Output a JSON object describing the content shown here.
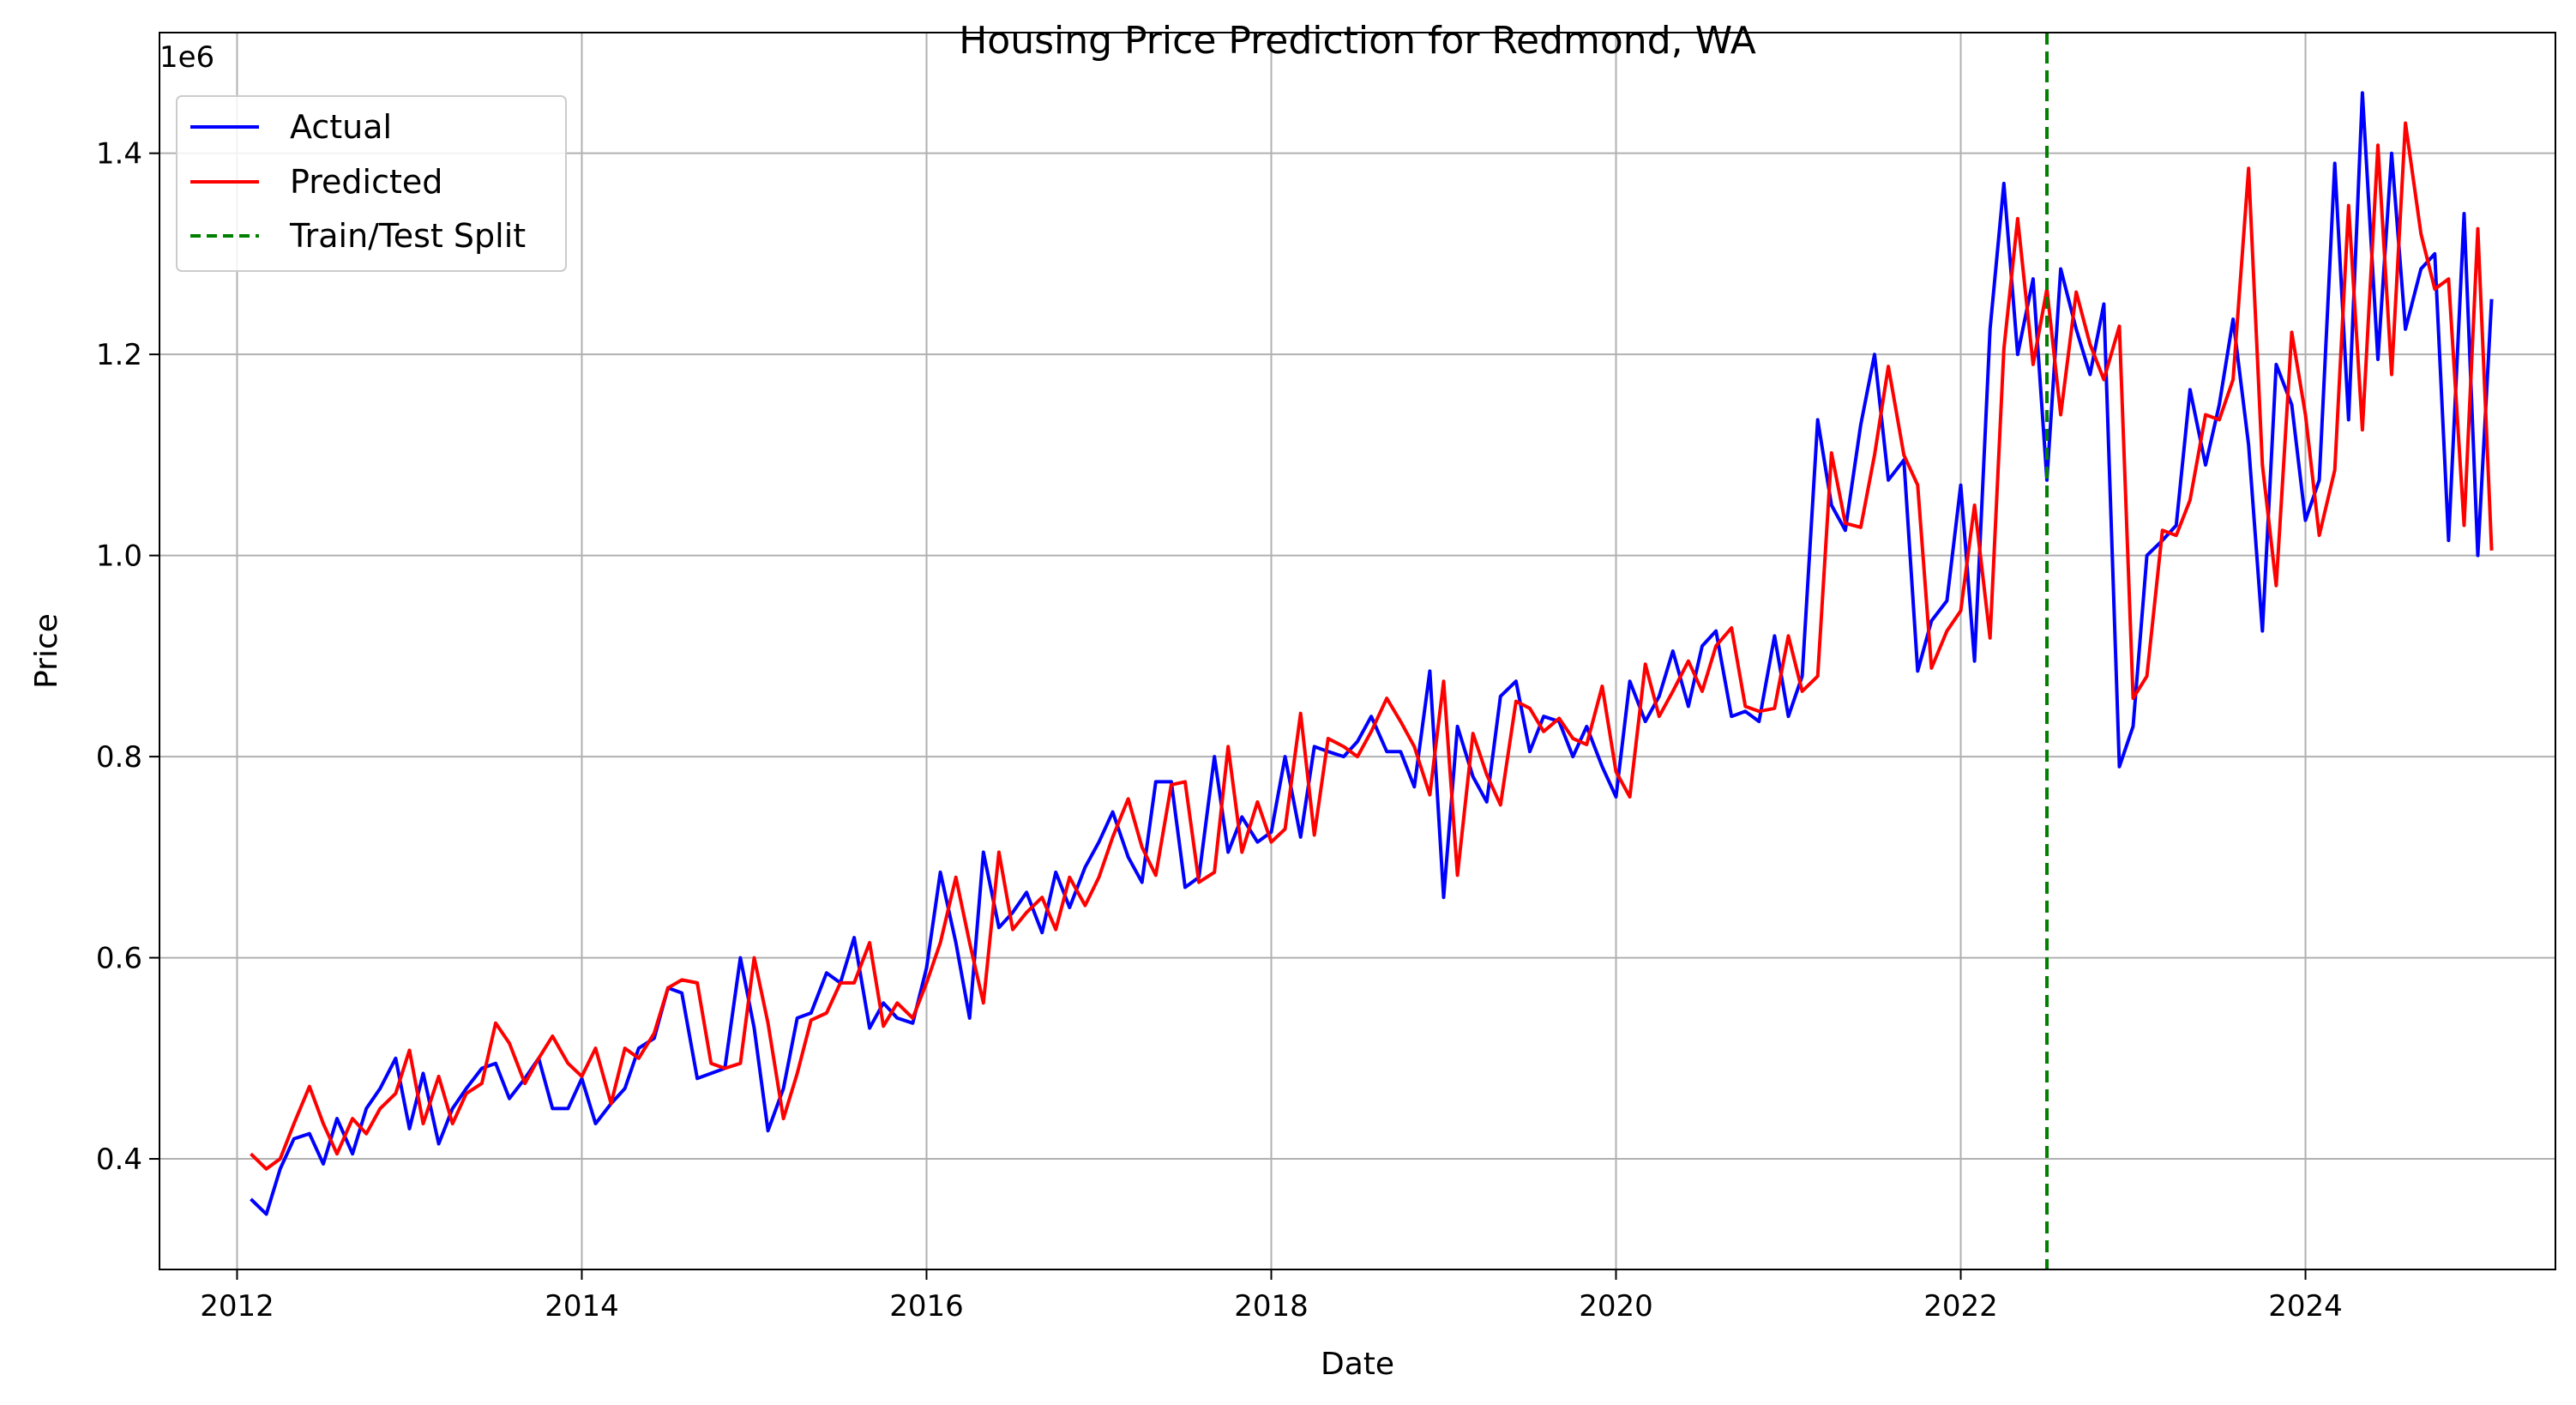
{
  "chart_data": {
    "type": "line",
    "title": "Housing Price Prediction for Redmond, WA",
    "xlabel": "Date",
    "ylabel": "Price",
    "y_scale_label": "1e6",
    "xlim": [
      2011.55,
      2025.45
    ],
    "ylim": [
      290000,
      1520000
    ],
    "x_ticks": [
      2012,
      2014,
      2016,
      2018,
      2020,
      2022,
      2024
    ],
    "x_tick_labels": [
      "2012",
      "2014",
      "2016",
      "2018",
      "2020",
      "2022",
      "2024"
    ],
    "y_ticks": [
      400000,
      600000,
      800000,
      1000000,
      1200000,
      1400000
    ],
    "y_tick_labels": [
      "0.4",
      "0.6",
      "0.8",
      "1.0",
      "1.2",
      "1.4"
    ],
    "grid": true,
    "legend_position": "top-left",
    "split_line": {
      "name": "Train/Test Split",
      "x": 2022.5,
      "color": "#008000",
      "style": "dashed"
    },
    "series": [
      {
        "name": "Actual",
        "color": "#0000ff",
        "x": [
          2012.08,
          2012.17,
          2012.25,
          2012.33,
          2012.42,
          2012.5,
          2012.58,
          2012.67,
          2012.75,
          2012.83,
          2012.92,
          2013.0,
          2013.08,
          2013.17,
          2013.25,
          2013.33,
          2013.42,
          2013.5,
          2013.58,
          2013.67,
          2013.75,
          2013.83,
          2013.92,
          2014.0,
          2014.08,
          2014.17,
          2014.25,
          2014.33,
          2014.42,
          2014.5,
          2014.58,
          2014.67,
          2014.75,
          2014.83,
          2014.92,
          2015.0,
          2015.08,
          2015.17,
          2015.25,
          2015.33,
          2015.42,
          2015.5,
          2015.58,
          2015.67,
          2015.75,
          2015.83,
          2015.92,
          2016.0,
          2016.08,
          2016.17,
          2016.25,
          2016.33,
          2016.42,
          2016.5,
          2016.58,
          2016.67,
          2016.75,
          2016.83,
          2016.92,
          2017.0,
          2017.08,
          2017.17,
          2017.25,
          2017.33,
          2017.42,
          2017.5,
          2017.58,
          2017.67,
          2017.75,
          2017.83,
          2017.92,
          2018.0,
          2018.08,
          2018.17,
          2018.25,
          2018.33,
          2018.42,
          2018.5,
          2018.58,
          2018.67,
          2018.75,
          2018.83,
          2018.92,
          2019.0,
          2019.08,
          2019.17,
          2019.25,
          2019.33,
          2019.42,
          2019.5,
          2019.58,
          2019.67,
          2019.75,
          2019.83,
          2019.92,
          2020.0,
          2020.08,
          2020.17,
          2020.25,
          2020.33,
          2020.42,
          2020.5,
          2020.58,
          2020.67,
          2020.75,
          2020.83,
          2020.92,
          2021.0,
          2021.08,
          2021.17,
          2021.25,
          2021.33,
          2021.42,
          2021.5,
          2021.58,
          2021.67,
          2021.75,
          2021.83,
          2021.92,
          2022.0,
          2022.08,
          2022.17,
          2022.25,
          2022.33,
          2022.42,
          2022.5,
          2022.58,
          2022.67,
          2022.75,
          2022.83,
          2022.92,
          2023.0,
          2023.08,
          2023.17,
          2023.25,
          2023.33,
          2023.42,
          2023.5,
          2023.58,
          2023.67,
          2023.75,
          2023.83,
          2023.92,
          2024.0,
          2024.08,
          2024.17,
          2024.25,
          2024.33,
          2024.42,
          2024.5,
          2024.58,
          2024.67,
          2024.75,
          2024.83,
          2024.92,
          2025.0,
          2025.08
        ],
        "values": [
          360000,
          345000,
          390000,
          420000,
          425000,
          395000,
          440000,
          405000,
          450000,
          470000,
          500000,
          430000,
          485000,
          415000,
          450000,
          470000,
          490000,
          495000,
          460000,
          480000,
          500000,
          450000,
          450000,
          480000,
          435000,
          455000,
          470000,
          510000,
          520000,
          570000,
          565000,
          480000,
          485000,
          490000,
          600000,
          530000,
          428000,
          470000,
          540000,
          545000,
          585000,
          575000,
          620000,
          530000,
          555000,
          540000,
          535000,
          590000,
          685000,
          615000,
          540000,
          705000,
          630000,
          645000,
          665000,
          625000,
          685000,
          650000,
          690000,
          715000,
          745000,
          700000,
          675000,
          775000,
          775000,
          670000,
          680000,
          800000,
          705000,
          740000,
          715000,
          725000,
          800000,
          720000,
          810000,
          805000,
          800000,
          815000,
          840000,
          805000,
          805000,
          770000,
          885000,
          660000,
          830000,
          780000,
          755000,
          860000,
          875000,
          805000,
          840000,
          835000,
          800000,
          830000,
          790000,
          760000,
          875000,
          835000,
          860000,
          905000,
          850000,
          910000,
          925000,
          840000,
          845000,
          835000,
          920000,
          840000,
          880000,
          1135000,
          1050000,
          1025000,
          1130000,
          1200000,
          1075000,
          1095000,
          885000,
          935000,
          955000,
          1070000,
          895000,
          1225000,
          1370000,
          1200000,
          1275000,
          1075000,
          1285000,
          1225000,
          1180000,
          1250000,
          790000,
          830000,
          1000000,
          1015000,
          1030000,
          1165000,
          1090000,
          1150000,
          1235000,
          1110000,
          925000,
          1190000,
          1150000,
          1035000,
          1075000,
          1390000,
          1135000,
          1460000,
          1195000,
          1400000,
          1225000,
          1285000,
          1300000,
          1015000,
          1340000,
          1000000,
          1255000
        ]
      },
      {
        "name": "Predicted",
        "color": "#ff0000",
        "x": [
          2012.08,
          2012.17,
          2012.25,
          2012.33,
          2012.42,
          2012.5,
          2012.58,
          2012.67,
          2012.75,
          2012.83,
          2012.92,
          2013.0,
          2013.08,
          2013.17,
          2013.25,
          2013.33,
          2013.42,
          2013.5,
          2013.58,
          2013.67,
          2013.75,
          2013.83,
          2013.92,
          2014.0,
          2014.08,
          2014.17,
          2014.25,
          2014.33,
          2014.42,
          2014.5,
          2014.58,
          2014.67,
          2014.75,
          2014.83,
          2014.92,
          2015.0,
          2015.08,
          2015.17,
          2015.25,
          2015.33,
          2015.42,
          2015.5,
          2015.58,
          2015.67,
          2015.75,
          2015.83,
          2015.92,
          2016.0,
          2016.08,
          2016.17,
          2016.25,
          2016.33,
          2016.42,
          2016.5,
          2016.58,
          2016.67,
          2016.75,
          2016.83,
          2016.92,
          2017.0,
          2017.08,
          2017.17,
          2017.25,
          2017.33,
          2017.42,
          2017.5,
          2017.58,
          2017.67,
          2017.75,
          2017.83,
          2017.92,
          2018.0,
          2018.08,
          2018.17,
          2018.25,
          2018.33,
          2018.42,
          2018.5,
          2018.58,
          2018.67,
          2018.75,
          2018.83,
          2018.92,
          2019.0,
          2019.08,
          2019.17,
          2019.25,
          2019.33,
          2019.42,
          2019.5,
          2019.58,
          2019.67,
          2019.75,
          2019.83,
          2019.92,
          2020.0,
          2020.08,
          2020.17,
          2020.25,
          2020.33,
          2020.42,
          2020.5,
          2020.58,
          2020.67,
          2020.75,
          2020.83,
          2020.92,
          2021.0,
          2021.08,
          2021.17,
          2021.25,
          2021.33,
          2021.42,
          2021.5,
          2021.58,
          2021.67,
          2021.75,
          2021.83,
          2021.92,
          2022.0,
          2022.08,
          2022.17,
          2022.25,
          2022.33,
          2022.42,
          2022.5,
          2022.58,
          2022.67,
          2022.75,
          2022.83,
          2022.92,
          2023.0,
          2023.08,
          2023.17,
          2023.25,
          2023.33,
          2023.42,
          2023.5,
          2023.58,
          2023.67,
          2023.75,
          2023.83,
          2023.92,
          2024.0,
          2024.08,
          2024.17,
          2024.25,
          2024.33,
          2024.42,
          2024.5,
          2024.58,
          2024.67,
          2024.75,
          2024.83,
          2024.92,
          2025.0,
          2025.08
        ],
        "values": [
          405000,
          390000,
          400000,
          435000,
          472000,
          435000,
          405000,
          440000,
          425000,
          450000,
          465000,
          508000,
          435000,
          482000,
          435000,
          465000,
          475000,
          535000,
          515000,
          475000,
          500000,
          522000,
          495000,
          482000,
          510000,
          455000,
          510000,
          500000,
          525000,
          570000,
          578000,
          575000,
          495000,
          490000,
          495000,
          600000,
          535000,
          440000,
          485000,
          538000,
          545000,
          575000,
          575000,
          615000,
          532000,
          555000,
          540000,
          575000,
          615000,
          680000,
          615000,
          555000,
          705000,
          628000,
          645000,
          660000,
          628000,
          680000,
          652000,
          680000,
          720000,
          758000,
          710000,
          682000,
          772000,
          775000,
          675000,
          685000,
          810000,
          705000,
          755000,
          715000,
          728000,
          843000,
          722000,
          818000,
          810000,
          800000,
          825000,
          858000,
          835000,
          810000,
          762000,
          875000,
          682000,
          823000,
          782000,
          752000,
          855000,
          848000,
          825000,
          838000,
          818000,
          812000,
          870000,
          785000,
          760000,
          892000,
          840000,
          865000,
          895000,
          865000,
          910000,
          928000,
          850000,
          845000,
          848000,
          920000,
          865000,
          880000,
          1102000,
          1032000,
          1028000,
          1100000,
          1188000,
          1100000,
          1070000,
          888000,
          925000,
          945000,
          1050000,
          918000,
          1205000,
          1335000,
          1190000,
          1265000,
          1140000,
          1262000,
          1210000,
          1175000,
          1228000,
          858000,
          880000,
          1025000,
          1020000,
          1055000,
          1140000,
          1135000,
          1175000,
          1385000,
          1090000,
          970000,
          1222000,
          1140000,
          1020000,
          1085000,
          1348000,
          1125000,
          1408000,
          1180000,
          1430000,
          1320000,
          1265000,
          1275000,
          1030000,
          1325000,
          1005000
        ]
      }
    ]
  }
}
